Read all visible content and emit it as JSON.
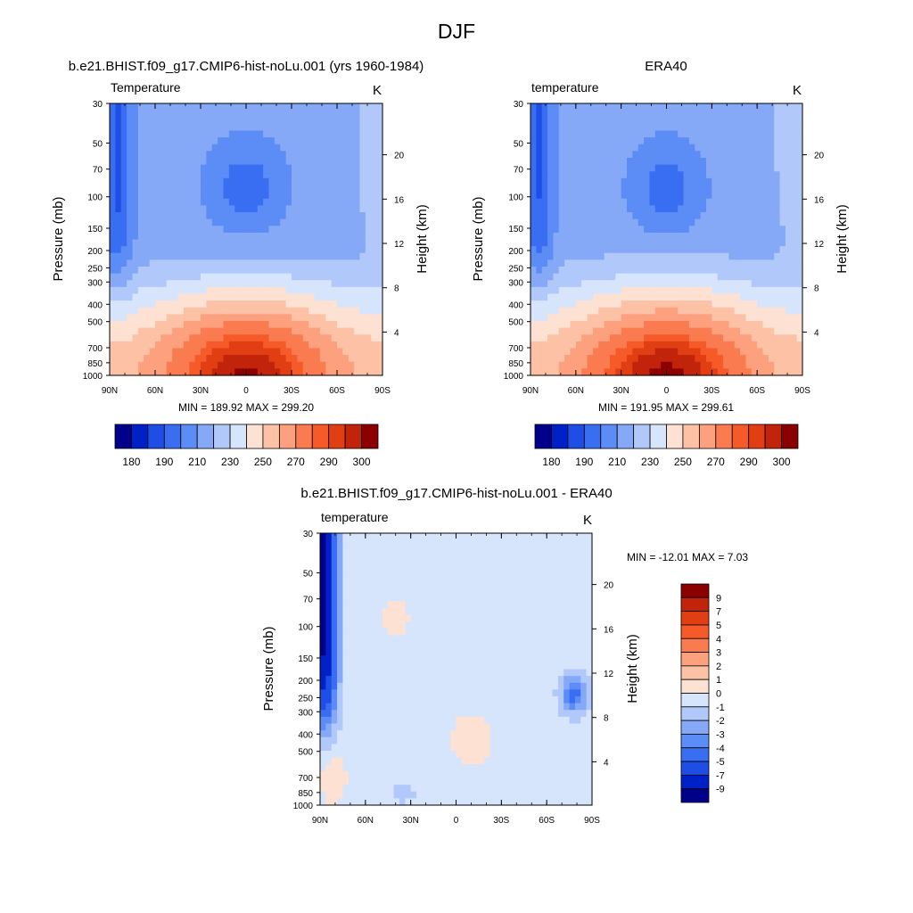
{
  "figure": {
    "title": "DJF"
  },
  "palettes": {
    "abs": [
      "#00008b",
      "#0020c8",
      "#1e4ee6",
      "#3a6ef2",
      "#5c8cf5",
      "#86a9f7",
      "#b0c8fa",
      "#d6e5fc",
      "#fde1d2",
      "#fdc2a6",
      "#fca07e",
      "#fb7b50",
      "#f55a28",
      "#e23e14",
      "#c1240a",
      "#8b0000"
    ],
    "diff": [
      "#00008b",
      "#0020c8",
      "#1e4ee6",
      "#3a6ef2",
      "#5c8cf5",
      "#86a9f7",
      "#b0c8fa",
      "#d6e5fc",
      "#fde1d2",
      "#fdc2a6",
      "#fca07e",
      "#fb7b50",
      "#f55a28",
      "#e23e14",
      "#c1240a",
      "#8b0000"
    ]
  },
  "chart_data": [
    {
      "type": "heatmap",
      "title": "b.e21.BHIST.f09_g17.CMIP6-hist-noLu.001 (yrs 1960-1984)",
      "left_string": "Temperature",
      "right_string": "K",
      "ylabel": "Pressure (mb)",
      "ylabel_right": "Height (km)",
      "x_tick_labels": [
        "90N",
        "60N",
        "30N",
        "0",
        "30S",
        "60S",
        "90S"
      ],
      "y_tick_labels": [
        "30",
        "50",
        "70",
        "100",
        "150",
        "200",
        "250",
        "300",
        "400",
        "500",
        "700",
        "850",
        "1000"
      ],
      "height_tick_labels": [
        "20",
        "16",
        "12",
        "8",
        "4"
      ],
      "stats": "MIN = 189.92  MAX = 299.20",
      "colorbar": {
        "orientation": "horizontal",
        "labels": [
          "180",
          "190",
          "210",
          "230",
          "250",
          "270",
          "290",
          "300"
        ]
      },
      "levels": [
        180,
        185,
        190,
        200,
        210,
        220,
        230,
        240,
        250,
        260,
        270,
        280,
        285,
        290,
        295,
        300
      ],
      "range": {
        "min": 189.92,
        "max": 299.2
      }
    },
    {
      "type": "heatmap",
      "title": "ERA40",
      "left_string": "temperature",
      "right_string": "K",
      "ylabel": "Pressure (mb)",
      "ylabel_right": "Height (km)",
      "x_tick_labels": [
        "90N",
        "60N",
        "30N",
        "0",
        "30S",
        "60S",
        "90S"
      ],
      "y_tick_labels": [
        "30",
        "50",
        "70",
        "100",
        "150",
        "200",
        "250",
        "300",
        "400",
        "500",
        "700",
        "850",
        "1000"
      ],
      "height_tick_labels": [
        "20",
        "16",
        "12",
        "8",
        "4"
      ],
      "stats": "MIN = 191.95  MAX = 299.61",
      "colorbar": {
        "orientation": "horizontal",
        "labels": [
          "180",
          "190",
          "210",
          "230",
          "250",
          "270",
          "290",
          "300"
        ]
      },
      "levels": [
        180,
        185,
        190,
        200,
        210,
        220,
        230,
        240,
        250,
        260,
        270,
        280,
        285,
        290,
        295,
        300
      ],
      "range": {
        "min": 191.95,
        "max": 299.61
      }
    },
    {
      "type": "heatmap",
      "title": "b.e21.BHIST.f09_g17.CMIP6-hist-noLu.001 - ERA40",
      "left_string": "temperature",
      "right_string": "K",
      "ylabel": "Pressure (mb)",
      "ylabel_right": "Height (km)",
      "x_tick_labels": [
        "90N",
        "60N",
        "30N",
        "0",
        "30S",
        "60S",
        "90S"
      ],
      "y_tick_labels": [
        "30",
        "50",
        "70",
        "100",
        "150",
        "200",
        "250",
        "300",
        "400",
        "500",
        "700",
        "850",
        "1000"
      ],
      "height_tick_labels": [
        "20",
        "16",
        "12",
        "8",
        "4"
      ],
      "stats": "MIN = -12.01  MAX =   7.03",
      "colorbar": {
        "orientation": "vertical",
        "labels": [
          "9",
          "7",
          "5",
          "4",
          "3",
          "2",
          "1",
          "0",
          "-1",
          "-2",
          "-3",
          "-4",
          "-5",
          "-7",
          "-9"
        ]
      },
      "levels": [
        -9,
        -7,
        -5,
        -4,
        -3,
        -2,
        -1,
        0,
        1,
        2,
        3,
        4,
        5,
        7,
        9
      ],
      "range": {
        "min": -12.01,
        "max": 7.03
      }
    }
  ]
}
